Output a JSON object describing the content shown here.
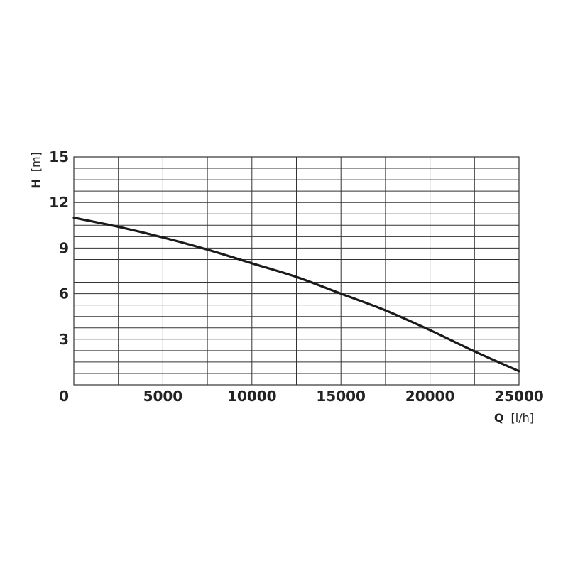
{
  "chart_data": {
    "type": "line",
    "title": "",
    "xlabel": {
      "symbol": "Q",
      "unit": "[l/h]"
    },
    "ylabel": {
      "symbol": "H",
      "unit": "[m]"
    },
    "xlim": [
      0,
      25000
    ],
    "ylim": [
      0,
      15
    ],
    "x_ticks": [
      0,
      5000,
      10000,
      15000,
      20000,
      25000
    ],
    "y_ticks": [
      3,
      6,
      9,
      12,
      15
    ],
    "x_grid_step": 2500,
    "y_grid_step": 0.75,
    "grid": true,
    "legend": "none",
    "colors": {
      "grid": "#333333",
      "curve": "#1a1a1a",
      "text": "#222222"
    },
    "series": [
      {
        "x": [
          0,
          2500,
          5000,
          7500,
          10000,
          12500,
          15000,
          17500,
          20000,
          22500,
          25000
        ],
        "y": [
          11.0,
          10.4,
          9.7,
          8.9,
          8.0,
          7.1,
          6.0,
          4.9,
          3.6,
          2.2,
          0.9
        ]
      }
    ]
  }
}
